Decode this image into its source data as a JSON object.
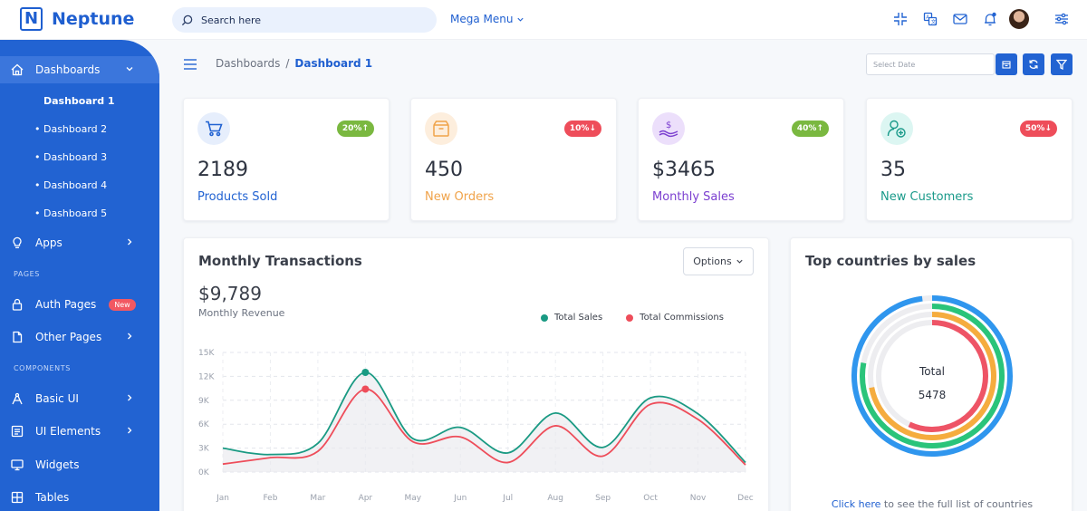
{
  "brand": {
    "logo_letter": "N",
    "name": "Neptune"
  },
  "search": {
    "placeholder": "Search here"
  },
  "header": {
    "mega_menu": "Mega Menu",
    "icons": [
      "compress-icon",
      "translate-icon",
      "mail-icon",
      "bell-icon",
      "avatar",
      "settings-sliders-icon"
    ]
  },
  "sidebar": {
    "dashboards": "Dashboards",
    "dashboard_items": [
      "Dashboard 1",
      "• Dashboard 2",
      "• Dashboard 3",
      "• Dashboard 4",
      "• Dashboard 5"
    ],
    "apps": "Apps",
    "pages_section": "PAGES",
    "auth_pages": "Auth Pages",
    "new_badge": "New",
    "other_pages": "Other Pages",
    "components_section": "COMPONENTS",
    "basic_ui": "Basic UI",
    "ui_elements": "UI Elements",
    "widgets": "Widgets",
    "tables": "Tables"
  },
  "breadcrumb": {
    "parent": "Dashboards",
    "separator": "/",
    "current": "Dashboard 1"
  },
  "date_picker": {
    "placeholder": "Select Date"
  },
  "stats": [
    {
      "value": "2189",
      "label": "Products Sold",
      "badge": "20%↑",
      "color": "#2263d2",
      "badge_color": "#7ab840",
      "icon_bg": "#e6eefc",
      "icon": "cart-icon"
    },
    {
      "value": "450",
      "label": "New Orders",
      "badge": "10%↓",
      "color": "#f0a34a",
      "badge_color": "#ee4d5a",
      "icon_bg": "#fdeedd",
      "icon": "box-icon"
    },
    {
      "value": "$3465",
      "label": "Monthly Sales",
      "badge": "40%↑",
      "color": "#7b3fd0",
      "badge_color": "#7ab840",
      "icon_bg": "#ecdffb",
      "icon": "money-hand-icon"
    },
    {
      "value": "35",
      "label": "New Customers",
      "badge": "50%↓",
      "color": "#1a9a8a",
      "badge_color": "#ee4d5a",
      "icon_bg": "#dcf6f2",
      "icon": "add-user-icon"
    }
  ],
  "transactions": {
    "title": "Monthly Transactions",
    "options_label": "Options",
    "revenue": "$9,789",
    "revenue_label": "Monthly Revenue"
  },
  "chart_data": {
    "type": "line",
    "categories": [
      "Jan",
      "Feb",
      "Mar",
      "Apr",
      "May",
      "Jun",
      "Jul",
      "Aug",
      "Sep",
      "Oct",
      "Nov",
      "Dec"
    ],
    "y_ticks": [
      "0K",
      "3K",
      "6K",
      "9K",
      "12K",
      "15K"
    ],
    "ylim": [
      0,
      15000
    ],
    "grid": true,
    "legend": "top-right",
    "series": [
      {
        "name": "Total Sales",
        "color": "#1a9a83",
        "values": [
          3000,
          2200,
          3600,
          12500,
          4200,
          5600,
          2400,
          7400,
          3100,
          9300,
          7300,
          1200
        ]
      },
      {
        "name": "Total Commissions",
        "color": "#ee4d5a",
        "values": [
          1000,
          1800,
          2600,
          10400,
          3800,
          4400,
          1200,
          5800,
          2000,
          8500,
          6600,
          900
        ]
      }
    ]
  },
  "countries": {
    "title": "Top countries by sales",
    "total_label": "Total",
    "total_value": "5478",
    "footer_link": "Click here",
    "footer_text": " to see the full list of countries",
    "ring_colors": [
      "#2f96ee",
      "#2ac47a",
      "#f5ac3e",
      "#ee5466"
    ],
    "ring_values": [
      0.98,
      0.78,
      0.72,
      0.57
    ]
  }
}
